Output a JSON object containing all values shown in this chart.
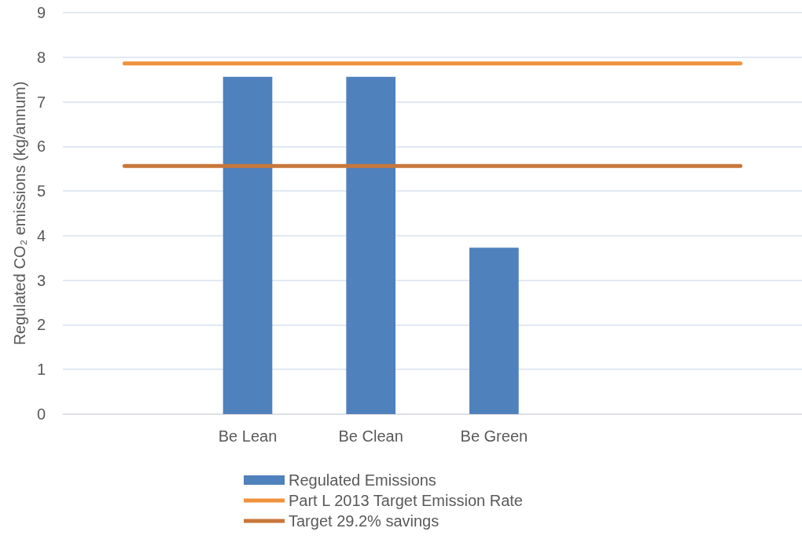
{
  "chart_data": {
    "type": "bar",
    "ylabel": "Regulated CO₂ emissions (kg/annum)",
    "categories": [
      null,
      "Be Lean",
      "Be Clean",
      "Be Green",
      null,
      null
    ],
    "series": [
      {
        "name": "Regulated Emissions",
        "color": "#4f81bd",
        "values": [
          null,
          7.56,
          7.56,
          3.73,
          null,
          null
        ]
      },
      {
        "name": "Part L 2013 Target Emission Rate",
        "type": "line",
        "color": "#f0913c",
        "values": [
          7.86,
          7.86,
          7.86,
          7.86,
          7.86,
          7.86
        ]
      },
      {
        "name": "Target 29.2% savings",
        "type": "line",
        "color": "#c8773a",
        "values": [
          5.56,
          5.56,
          5.56,
          5.56,
          5.56,
          5.56
        ]
      }
    ],
    "ylim": [
      0,
      9
    ],
    "yticks": [
      0,
      1,
      2,
      3,
      4,
      5,
      6,
      7,
      8,
      9
    ],
    "grid": "y",
    "legend": "bottom",
    "marker": "none",
    "line_style": "solid"
  }
}
